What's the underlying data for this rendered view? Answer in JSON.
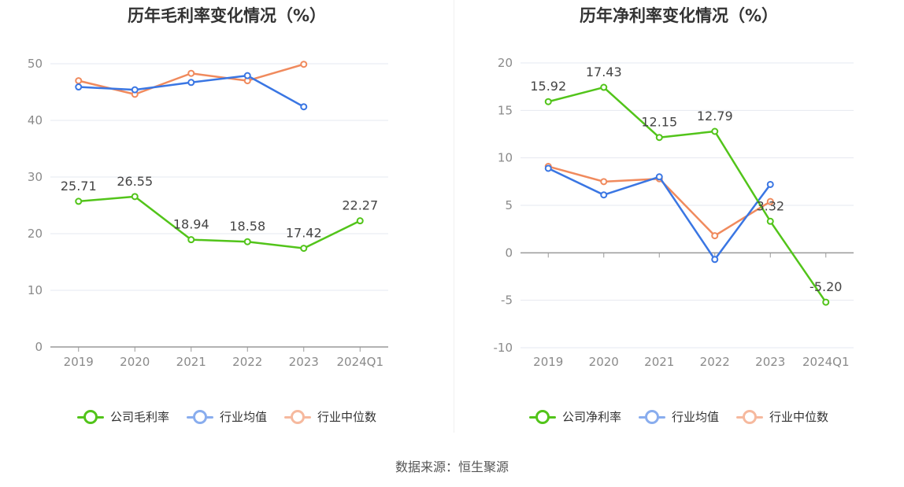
{
  "source": "数据来源：恒生聚源",
  "colors": {
    "company": "#52c41a",
    "avg": "#3a76e3",
    "median": "#f08a5d"
  },
  "chart_data": [
    {
      "type": "line",
      "title": "历年毛利率变化情况（%）",
      "categories": [
        "2019",
        "2020",
        "2021",
        "2022",
        "2023",
        "2024Q1"
      ],
      "ylim": [
        0,
        50
      ],
      "yticks": [
        "0",
        "10",
        "20",
        "30",
        "40",
        "50"
      ],
      "grid": true,
      "legend_position": "bottom",
      "series": [
        {
          "name": "公司毛利率",
          "key": "company",
          "values": [
            25.71,
            26.55,
            18.94,
            18.58,
            17.42,
            22.27
          ],
          "labels": [
            "25.71",
            "26.55",
            "18.94",
            "18.58",
            "17.42",
            "22.27"
          ]
        },
        {
          "name": "行业均值",
          "key": "avg",
          "values": [
            45.9,
            45.4,
            46.7,
            47.9,
            42.4,
            null
          ]
        },
        {
          "name": "行业中位数",
          "key": "median",
          "values": [
            47.0,
            44.6,
            48.3,
            47.0,
            49.9,
            null
          ]
        }
      ]
    },
    {
      "type": "line",
      "title": "历年净利率变化情况（%）",
      "categories": [
        "2019",
        "2020",
        "2021",
        "2022",
        "2023",
        "2024Q1"
      ],
      "ylim": [
        -10,
        20
      ],
      "yticks": [
        "-10",
        "-5",
        "0",
        "5",
        "10",
        "15",
        "20"
      ],
      "grid": true,
      "legend_position": "bottom",
      "series": [
        {
          "name": "公司净利率",
          "key": "company",
          "values": [
            15.92,
            17.43,
            12.15,
            12.79,
            3.32,
            -5.2
          ],
          "labels": [
            "15.92",
            "17.43",
            "12.15",
            "12.79",
            "3.32",
            "-5.20"
          ]
        },
        {
          "name": "行业均值",
          "key": "avg",
          "values": [
            8.9,
            6.1,
            8.0,
            -0.7,
            7.2,
            null
          ]
        },
        {
          "name": "行业中位数",
          "key": "median",
          "values": [
            9.1,
            7.5,
            7.8,
            1.8,
            5.4,
            null
          ]
        }
      ]
    }
  ]
}
